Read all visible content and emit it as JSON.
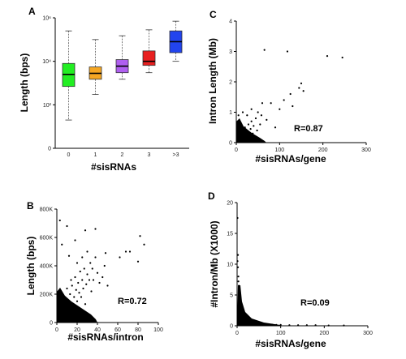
{
  "chart_data": [
    {
      "panel": "A",
      "type": "box",
      "xlabel": "#sisRNAs",
      "ylabel": "Length (bps)",
      "scale": "log10",
      "ylim": [
        1,
        1000000
      ],
      "y_ticks": [
        "10⁶",
        "10⁴",
        "10²",
        "0"
      ],
      "categories": [
        "0",
        "1",
        "2",
        "3",
        ">3"
      ],
      "colors": [
        "#22ee22",
        "#f5a623",
        "#b060f0",
        "#e82020",
        "#2244ee"
      ],
      "boxes": [
        {
          "min": 20,
          "q1": 700,
          "median": 2500,
          "q3": 8000,
          "max": 250000
        },
        {
          "min": 300,
          "q1": 1500,
          "median": 2800,
          "q3": 5500,
          "max": 100000
        },
        {
          "min": 1500,
          "q1": 3000,
          "median": 6000,
          "q3": 12000,
          "max": 150000
        },
        {
          "min": 3000,
          "q1": 6500,
          "median": 10000,
          "q3": 30000,
          "max": 280000
        },
        {
          "min": 10000,
          "q1": 25000,
          "median": 80000,
          "q3": 250000,
          "max": 700000
        }
      ]
    },
    {
      "panel": "B",
      "type": "scatter",
      "xlabel": "#sisRNAs/intron",
      "ylabel": "Length (bps)",
      "xlim": [
        0,
        100
      ],
      "ylim": [
        0,
        800000
      ],
      "x_ticks": [
        "0",
        "20",
        "40",
        "60",
        "80",
        "100"
      ],
      "y_ticks": [
        "0",
        "200K",
        "400K",
        "600K",
        "800K"
      ],
      "annotation": "R=0.72",
      "points": [
        [
          1,
          10000
        ],
        [
          1,
          50000
        ],
        [
          2,
          30000
        ],
        [
          2,
          80000
        ],
        [
          3,
          20000
        ],
        [
          3,
          120000
        ],
        [
          4,
          60000
        ],
        [
          5,
          15000
        ],
        [
          5,
          150000
        ],
        [
          6,
          40000
        ],
        [
          7,
          90000
        ],
        [
          8,
          25000
        ],
        [
          8,
          180000
        ],
        [
          9,
          60000
        ],
        [
          10,
          110000
        ],
        [
          10,
          240000
        ],
        [
          11,
          70000
        ],
        [
          12,
          150000
        ],
        [
          13,
          200000
        ],
        [
          14,
          300000
        ],
        [
          15,
          120000
        ],
        [
          15,
          260000
        ],
        [
          16,
          90000
        ],
        [
          17,
          180000
        ],
        [
          18,
          320000
        ],
        [
          19,
          230000
        ],
        [
          20,
          150000
        ],
        [
          20,
          420000
        ],
        [
          21,
          280000
        ],
        [
          22,
          210000
        ],
        [
          23,
          360000
        ],
        [
          24,
          180000
        ],
        [
          25,
          300000
        ],
        [
          25,
          460000
        ],
        [
          26,
          240000
        ],
        [
          27,
          380000
        ],
        [
          28,
          130000
        ],
        [
          29,
          270000
        ],
        [
          30,
          340000
        ],
        [
          30,
          500000
        ],
        [
          32,
          300000
        ],
        [
          33,
          420000
        ],
        [
          34,
          220000
        ],
        [
          35,
          380000
        ],
        [
          36,
          300000
        ],
        [
          38,
          460000
        ],
        [
          40,
          350000
        ],
        [
          42,
          280000
        ],
        [
          45,
          320000
        ],
        [
          47,
          400000
        ],
        [
          50,
          260000
        ],
        [
          3,
          720000
        ],
        [
          10,
          680000
        ],
        [
          28,
          650000
        ],
        [
          38,
          660000
        ],
        [
          48,
          490000
        ],
        [
          62,
          460000
        ],
        [
          68,
          500000
        ],
        [
          72,
          500000
        ],
        [
          80,
          430000
        ],
        [
          82,
          610000
        ],
        [
          86,
          550000
        ],
        [
          5,
          550000
        ],
        [
          12,
          470000
        ],
        [
          18,
          580000
        ]
      ]
    },
    {
      "panel": "C",
      "type": "scatter",
      "xlabel": "#sisRNAs/gene",
      "ylabel": "Intron Length (Mb)",
      "xlim": [
        0,
        300
      ],
      "ylim": [
        0,
        4
      ],
      "x_ticks": [
        "0",
        "100",
        "200",
        "300"
      ],
      "y_ticks": [
        "0",
        "1",
        "2",
        "3",
        "4"
      ],
      "annotation": "R=0.87",
      "points": [
        [
          2,
          0.05
        ],
        [
          4,
          0.12
        ],
        [
          6,
          0.2
        ],
        [
          8,
          0.08
        ],
        [
          10,
          0.3
        ],
        [
          12,
          0.18
        ],
        [
          15,
          0.4
        ],
        [
          18,
          0.25
        ],
        [
          20,
          0.5
        ],
        [
          22,
          0.15
        ],
        [
          25,
          0.35
        ],
        [
          28,
          0.6
        ],
        [
          30,
          0.28
        ],
        [
          33,
          0.45
        ],
        [
          35,
          0.7
        ],
        [
          38,
          0.3
        ],
        [
          40,
          0.55
        ],
        [
          42,
          0.2
        ],
        [
          45,
          0.8
        ],
        [
          48,
          0.4
        ],
        [
          50,
          1.0
        ],
        [
          55,
          0.6
        ],
        [
          58,
          0.9
        ],
        [
          60,
          1.3
        ],
        [
          65,
          3.05
        ],
        [
          70,
          0.75
        ],
        [
          80,
          1.3
        ],
        [
          90,
          0.5
        ],
        [
          100,
          1.1
        ],
        [
          110,
          1.4
        ],
        [
          118,
          3.0
        ],
        [
          125,
          1.6
        ],
        [
          130,
          1.2
        ],
        [
          145,
          1.8
        ],
        [
          150,
          1.95
        ],
        [
          155,
          1.7
        ],
        [
          210,
          2.85
        ],
        [
          245,
          2.8
        ],
        [
          25,
          0.9
        ],
        [
          15,
          1.0
        ],
        [
          35,
          1.1
        ],
        [
          5,
          0.9
        ]
      ]
    },
    {
      "panel": "D",
      "type": "scatter",
      "xlabel": "#sisRNAs/gene",
      "ylabel": "#Intron/Mb (X1000)",
      "xlim": [
        0,
        300
      ],
      "ylim": [
        0,
        20
      ],
      "x_ticks": [
        "0",
        "100",
        "200",
        "300"
      ],
      "y_ticks": [
        "0",
        "5",
        "10",
        "15",
        "20"
      ],
      "annotation": "R=0.09",
      "points": [
        [
          1,
          17.5
        ],
        [
          2,
          11.5
        ],
        [
          1,
          10.5
        ],
        [
          2,
          9.5
        ],
        [
          3,
          8.0
        ],
        [
          4,
          6.5
        ],
        [
          3,
          7.2
        ],
        [
          5,
          5.5
        ],
        [
          6,
          4.8
        ],
        [
          7,
          4.2
        ],
        [
          8,
          3.6
        ],
        [
          10,
          3.0
        ],
        [
          12,
          2.6
        ],
        [
          14,
          2.2
        ],
        [
          16,
          1.8
        ],
        [
          18,
          1.5
        ],
        [
          20,
          1.2
        ],
        [
          22,
          1.0
        ],
        [
          25,
          0.9
        ],
        [
          28,
          0.8
        ],
        [
          30,
          0.6
        ],
        [
          35,
          0.5
        ],
        [
          40,
          0.45
        ],
        [
          45,
          0.4
        ],
        [
          50,
          0.35
        ],
        [
          55,
          0.3
        ],
        [
          60,
          0.28
        ],
        [
          70,
          0.2
        ],
        [
          80,
          0.2
        ],
        [
          90,
          0.15
        ],
        [
          100,
          0.15
        ],
        [
          120,
          0.1
        ],
        [
          140,
          0.1
        ],
        [
          160,
          0.1
        ],
        [
          180,
          0.1
        ],
        [
          210,
          0.05
        ],
        [
          245,
          0.05
        ]
      ]
    }
  ]
}
